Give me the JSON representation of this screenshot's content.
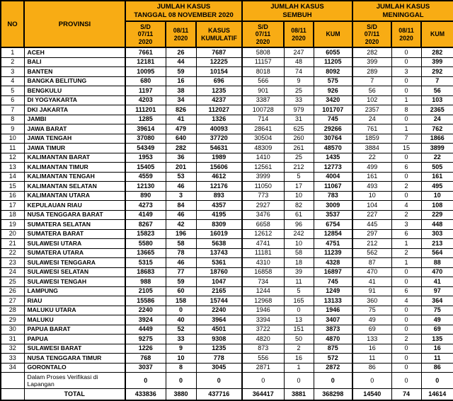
{
  "colors": {
    "header_bg": "#F8AC14",
    "border": "#000000",
    "row_bg": "#FFFFFF",
    "text": "#000000"
  },
  "table": {
    "header": {
      "no": "NO",
      "provinsi": "PROVINSI",
      "groups": [
        {
          "title": "JUMLAH KASUS\nTANGGAL 08 NOVEMBER 2020",
          "cols": [
            "S/D\n07/11\n2020",
            "08/11\n2020",
            "KASUS\nKUMULATIF"
          ]
        },
        {
          "title": "JUMLAH KASUS\nSEMBUH",
          "cols": [
            "S/D\n07/11\n2020",
            "08/11\n2020",
            "KUM"
          ]
        },
        {
          "title": "JUMLAH KASUS\nMENINGGAL",
          "cols": [
            "S/D\n07/11\n2020",
            "08/11\n2020",
            "KUM"
          ]
        }
      ]
    },
    "rows": [
      [
        1,
        "ACEH",
        7661,
        26,
        7687,
        5808,
        247,
        6055,
        282,
        0,
        282
      ],
      [
        2,
        "BALI",
        12181,
        44,
        12225,
        11157,
        48,
        11205,
        399,
        0,
        399
      ],
      [
        3,
        "BANTEN",
        10095,
        59,
        10154,
        8018,
        74,
        8092,
        289,
        3,
        292
      ],
      [
        4,
        "BANGKA BELITUNG",
        680,
        16,
        696,
        566,
        9,
        575,
        7,
        0,
        7
      ],
      [
        5,
        "BENGKULU",
        1197,
        38,
        1235,
        901,
        25,
        926,
        56,
        0,
        56
      ],
      [
        6,
        "DI YOGYAKARTA",
        4203,
        34,
        4237,
        3387,
        33,
        3420,
        102,
        1,
        103
      ],
      [
        7,
        "DKI JAKARTA",
        111201,
        826,
        112027,
        100728,
        979,
        101707,
        2357,
        8,
        2365
      ],
      [
        8,
        "JAMBI",
        1285,
        41,
        1326,
        714,
        31,
        745,
        24,
        0,
        24
      ],
      [
        9,
        "JAWA BARAT",
        39614,
        479,
        40093,
        28641,
        625,
        29266,
        761,
        1,
        762
      ],
      [
        10,
        "JAWA TENGAH",
        37080,
        640,
        37720,
        30504,
        260,
        30764,
        1859,
        7,
        1866
      ],
      [
        11,
        "JAWA TIMUR",
        54349,
        282,
        54631,
        48309,
        261,
        48570,
        3884,
        15,
        3899
      ],
      [
        12,
        "KALIMANTAN BARAT",
        1953,
        36,
        1989,
        1410,
        25,
        1435,
        22,
        0,
        22
      ],
      [
        13,
        "KALIMANTAN TIMUR",
        15405,
        201,
        15606,
        12561,
        212,
        12773,
        499,
        6,
        505
      ],
      [
        14,
        "KALIMANTAN TENGAH",
        4559,
        53,
        4612,
        3999,
        5,
        4004,
        161,
        0,
        161
      ],
      [
        15,
        "KALIMANTAN SELATAN",
        12130,
        46,
        12176,
        11050,
        17,
        11067,
        493,
        2,
        495
      ],
      [
        16,
        "KALIMANTAN UTARA",
        890,
        3,
        893,
        773,
        10,
        783,
        10,
        0,
        10
      ],
      [
        17,
        "KEPULAUAN RIAU",
        4273,
        84,
        4357,
        2927,
        82,
        3009,
        104,
        4,
        108
      ],
      [
        18,
        "NUSA TENGGARA BARAT",
        4149,
        46,
        4195,
        3476,
        61,
        3537,
        227,
        2,
        229
      ],
      [
        19,
        "SUMATERA SELATAN",
        8267,
        42,
        8309,
        6658,
        96,
        6754,
        445,
        3,
        448
      ],
      [
        20,
        "SUMATERA BARAT",
        15823,
        196,
        16019,
        12612,
        242,
        12854,
        297,
        6,
        303
      ],
      [
        21,
        "SULAWESI UTARA",
        5580,
        58,
        5638,
        4741,
        10,
        4751,
        212,
        1,
        213
      ],
      [
        22,
        "SUMATERA UTARA",
        13665,
        78,
        13743,
        11181,
        58,
        11239,
        562,
        2,
        564
      ],
      [
        23,
        "SULAWESI TENGGARA",
        5315,
        46,
        5361,
        4310,
        18,
        4328,
        87,
        1,
        88
      ],
      [
        24,
        "SULAWESI SELATAN",
        18683,
        77,
        18760,
        16858,
        39,
        16897,
        470,
        0,
        470
      ],
      [
        25,
        "SULAWESI TENGAH",
        988,
        59,
        1047,
        734,
        11,
        745,
        41,
        0,
        41
      ],
      [
        26,
        "LAMPUNG",
        2105,
        60,
        2165,
        1244,
        5,
        1249,
        91,
        6,
        97
      ],
      [
        27,
        "RIAU",
        15586,
        158,
        15744,
        12968,
        165,
        13133,
        360,
        4,
        364
      ],
      [
        28,
        "MALUKU UTARA",
        2240,
        0,
        2240,
        1946,
        0,
        1946,
        75,
        0,
        75
      ],
      [
        29,
        "MALUKU",
        3924,
        40,
        3964,
        3394,
        13,
        3407,
        49,
        0,
        49
      ],
      [
        30,
        "PAPUA BARAT",
        4449,
        52,
        4501,
        3722,
        151,
        3873,
        69,
        0,
        69
      ],
      [
        31,
        "PAPUA",
        9275,
        33,
        9308,
        4820,
        50,
        4870,
        133,
        2,
        135
      ],
      [
        32,
        "SULAWESI BARAT",
        1226,
        9,
        1235,
        873,
        2,
        875,
        16,
        0,
        16
      ],
      [
        33,
        "NUSA TENGGARA TIMUR",
        768,
        10,
        778,
        556,
        16,
        572,
        11,
        0,
        11
      ],
      [
        34,
        "GORONTALO",
        3037,
        8,
        3045,
        2871,
        1,
        2872,
        86,
        0,
        86
      ]
    ],
    "verification_row": {
      "label": "Dalam Proses Verifikasi di Lapangan",
      "values": [
        0,
        0,
        0,
        0,
        0,
        0,
        0,
        0,
        0
      ]
    },
    "total_row": {
      "label": "TOTAL",
      "values": [
        433836,
        3880,
        437716,
        364417,
        3881,
        368298,
        14540,
        74,
        14614
      ]
    }
  }
}
